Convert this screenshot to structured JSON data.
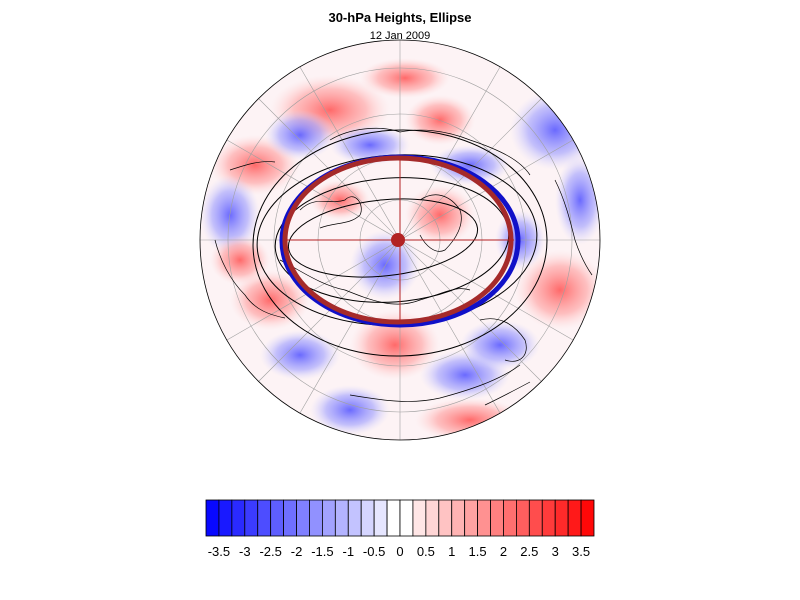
{
  "figure": {
    "title": "30-hPa Heights, Ellipse",
    "subtitle": "12 Jan 2009"
  },
  "map": {
    "projection": "north-polar-stereographic",
    "shading": "height anomaly (shaded blue negative, red positive)",
    "colors": {
      "negative": "#0000ff",
      "positive": "#ff0000",
      "contour": "#000000",
      "ellipse_fit_1": "#a52a2a",
      "ellipse_fit_2": "#1010c8",
      "center_marker": "#b22222",
      "grid": "#999999"
    }
  },
  "colorbar": {
    "tick_labels": [
      "-3.5",
      "-3",
      "-2.5",
      "-2",
      "-1.5",
      "-1",
      "-0.5",
      "0",
      "0.5",
      "1",
      "1.5",
      "2",
      "2.5",
      "3",
      "3.5"
    ],
    "levels": [
      -3.75,
      -3.5,
      -3.25,
      -3.0,
      -2.75,
      -2.5,
      -2.25,
      -2.0,
      -1.75,
      -1.5,
      -1.25,
      -1.0,
      -0.75,
      -0.5,
      -0.25,
      0,
      0.25,
      0.5,
      0.75,
      1.0,
      1.25,
      1.5,
      1.75,
      2.0,
      2.25,
      2.5,
      2.75,
      3.0,
      3.25,
      3.5,
      3.75
    ]
  }
}
